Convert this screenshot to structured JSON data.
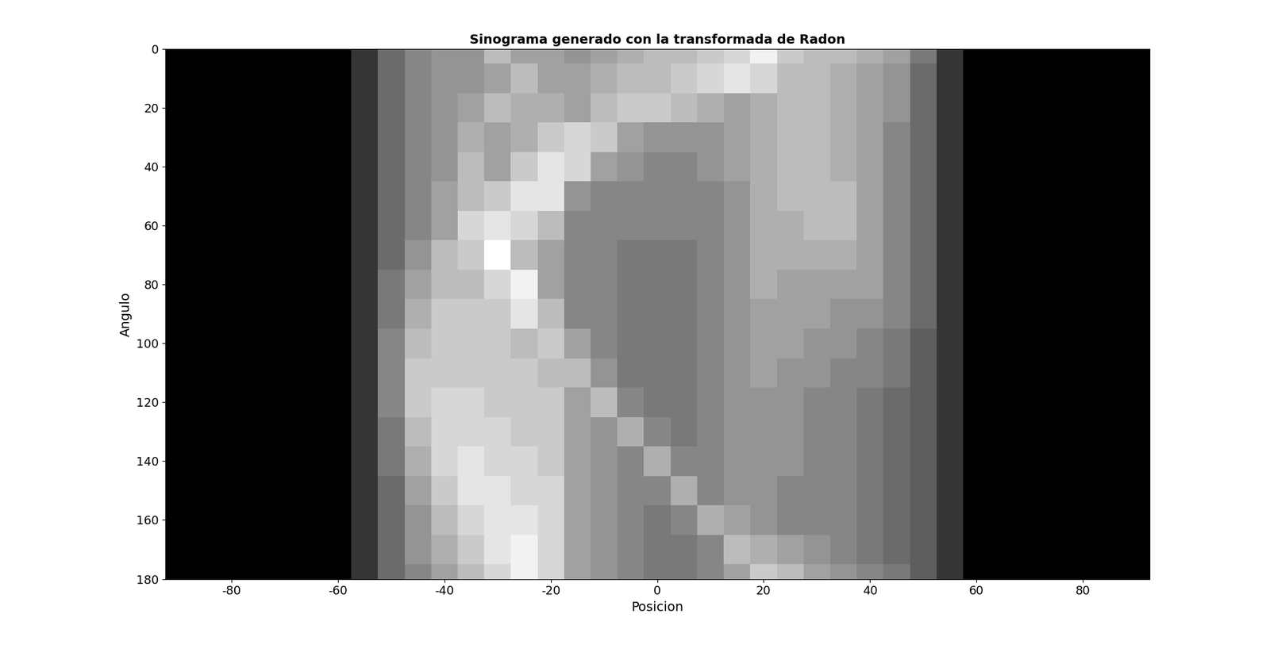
{
  "chart_data": {
    "type": "heatmap",
    "title": "Sinograma generado con la transformada de Radon",
    "x_label": "Posicion",
    "y_label": "Angulo",
    "color": "gray",
    "x": [
      -90,
      -85,
      -80,
      -75,
      -70,
      -65,
      -60,
      -55,
      -50,
      -45,
      -40,
      -35,
      -30,
      -25,
      -20,
      -15,
      -10,
      -5,
      0,
      5,
      10,
      15,
      20,
      25,
      30,
      35,
      40,
      45,
      50,
      55,
      60,
      65,
      70,
      75,
      80,
      85,
      90
    ],
    "y": [
      0,
      10,
      20,
      30,
      40,
      50,
      60,
      70,
      80,
      90,
      100,
      110,
      120,
      130,
      140,
      150,
      160,
      170,
      180
    ],
    "cells": [
      [
        0,
        0,
        0,
        0,
        0,
        0,
        0,
        0.2,
        0.4,
        0.5,
        0.55,
        0.55,
        0.7,
        0.6,
        0.6,
        0.55,
        0.6,
        0.65,
        0.7,
        0.7,
        0.75,
        0.8,
        0.9,
        0.75,
        0.7,
        0.7,
        0.65,
        0.6,
        0.45,
        0.2,
        0,
        0,
        0,
        0,
        0,
        0,
        0
      ],
      [
        0,
        0,
        0,
        0,
        0,
        0,
        0,
        0.2,
        0.4,
        0.5,
        0.55,
        0.55,
        0.6,
        0.7,
        0.6,
        0.6,
        0.65,
        0.7,
        0.7,
        0.75,
        0.8,
        0.85,
        0.8,
        0.7,
        0.7,
        0.65,
        0.6,
        0.55,
        0.4,
        0.2,
        0,
        0,
        0,
        0,
        0,
        0,
        0
      ],
      [
        0,
        0,
        0,
        0,
        0,
        0,
        0,
        0.2,
        0.4,
        0.5,
        0.55,
        0.6,
        0.7,
        0.65,
        0.65,
        0.6,
        0.7,
        0.75,
        0.75,
        0.7,
        0.65,
        0.6,
        0.65,
        0.7,
        0.7,
        0.65,
        0.6,
        0.55,
        0.4,
        0.2,
        0,
        0,
        0,
        0,
        0,
        0,
        0
      ],
      [
        0,
        0,
        0,
        0,
        0,
        0,
        0,
        0.2,
        0.4,
        0.5,
        0.55,
        0.65,
        0.6,
        0.65,
        0.75,
        0.8,
        0.75,
        0.6,
        0.55,
        0.55,
        0.55,
        0.6,
        0.65,
        0.7,
        0.7,
        0.65,
        0.6,
        0.5,
        0.4,
        0.2,
        0,
        0,
        0,
        0,
        0,
        0,
        0
      ],
      [
        0,
        0,
        0,
        0,
        0,
        0,
        0,
        0.2,
        0.4,
        0.5,
        0.55,
        0.7,
        0.6,
        0.75,
        0.85,
        0.8,
        0.6,
        0.55,
        0.5,
        0.5,
        0.55,
        0.6,
        0.65,
        0.7,
        0.7,
        0.65,
        0.6,
        0.5,
        0.4,
        0.2,
        0,
        0,
        0,
        0,
        0,
        0,
        0
      ],
      [
        0,
        0,
        0,
        0,
        0,
        0,
        0,
        0.2,
        0.4,
        0.5,
        0.6,
        0.7,
        0.75,
        0.85,
        0.85,
        0.55,
        0.5,
        0.5,
        0.5,
        0.5,
        0.5,
        0.55,
        0.65,
        0.7,
        0.7,
        0.7,
        0.6,
        0.5,
        0.4,
        0.2,
        0,
        0,
        0,
        0,
        0,
        0,
        0
      ],
      [
        0,
        0,
        0,
        0,
        0,
        0,
        0,
        0.2,
        0.4,
        0.5,
        0.6,
        0.8,
        0.85,
        0.8,
        0.7,
        0.5,
        0.5,
        0.5,
        0.5,
        0.5,
        0.5,
        0.55,
        0.65,
        0.65,
        0.7,
        0.7,
        0.6,
        0.5,
        0.4,
        0.2,
        0,
        0,
        0,
        0,
        0,
        0,
        0
      ],
      [
        0,
        0,
        0,
        0,
        0,
        0,
        0,
        0.2,
        0.4,
        0.55,
        0.7,
        0.75,
        0.95,
        0.7,
        0.6,
        0.5,
        0.5,
        0.45,
        0.45,
        0.45,
        0.5,
        0.55,
        0.65,
        0.65,
        0.65,
        0.65,
        0.6,
        0.5,
        0.4,
        0.2,
        0,
        0,
        0,
        0,
        0,
        0,
        0
      ],
      [
        0,
        0,
        0,
        0,
        0,
        0,
        0,
        0.2,
        0.45,
        0.6,
        0.7,
        0.7,
        0.8,
        0.9,
        0.6,
        0.5,
        0.5,
        0.45,
        0.45,
        0.45,
        0.5,
        0.55,
        0.65,
        0.6,
        0.6,
        0.6,
        0.6,
        0.5,
        0.4,
        0.2,
        0,
        0,
        0,
        0,
        0,
        0,
        0
      ],
      [
        0,
        0,
        0,
        0,
        0,
        0,
        0,
        0.2,
        0.45,
        0.65,
        0.75,
        0.75,
        0.75,
        0.85,
        0.7,
        0.5,
        0.5,
        0.45,
        0.45,
        0.45,
        0.5,
        0.55,
        0.6,
        0.6,
        0.6,
        0.55,
        0.55,
        0.5,
        0.4,
        0.2,
        0,
        0,
        0,
        0,
        0,
        0,
        0
      ],
      [
        0,
        0,
        0,
        0,
        0,
        0,
        0,
        0.2,
        0.5,
        0.7,
        0.75,
        0.75,
        0.75,
        0.7,
        0.75,
        0.6,
        0.5,
        0.45,
        0.45,
        0.45,
        0.5,
        0.55,
        0.6,
        0.6,
        0.55,
        0.55,
        0.5,
        0.45,
        0.35,
        0.2,
        0,
        0,
        0,
        0,
        0,
        0,
        0
      ],
      [
        0,
        0,
        0,
        0,
        0,
        0,
        0,
        0.2,
        0.5,
        0.75,
        0.75,
        0.75,
        0.75,
        0.75,
        0.7,
        0.7,
        0.55,
        0.45,
        0.45,
        0.45,
        0.5,
        0.55,
        0.6,
        0.55,
        0.55,
        0.5,
        0.5,
        0.45,
        0.35,
        0.2,
        0,
        0,
        0,
        0,
        0,
        0,
        0
      ],
      [
        0,
        0,
        0,
        0,
        0,
        0,
        0,
        0.2,
        0.5,
        0.75,
        0.8,
        0.8,
        0.75,
        0.75,
        0.75,
        0.6,
        0.7,
        0.5,
        0.45,
        0.45,
        0.5,
        0.55,
        0.55,
        0.55,
        0.5,
        0.5,
        0.45,
        0.4,
        0.35,
        0.2,
        0,
        0,
        0,
        0,
        0,
        0,
        0
      ],
      [
        0,
        0,
        0,
        0,
        0,
        0,
        0,
        0.2,
        0.45,
        0.7,
        0.8,
        0.8,
        0.8,
        0.75,
        0.75,
        0.6,
        0.55,
        0.65,
        0.5,
        0.45,
        0.5,
        0.55,
        0.55,
        0.55,
        0.5,
        0.5,
        0.45,
        0.4,
        0.35,
        0.2,
        0,
        0,
        0,
        0,
        0,
        0,
        0
      ],
      [
        0,
        0,
        0,
        0,
        0,
        0,
        0,
        0.2,
        0.45,
        0.65,
        0.8,
        0.85,
        0.8,
        0.8,
        0.75,
        0.6,
        0.55,
        0.5,
        0.65,
        0.5,
        0.5,
        0.55,
        0.55,
        0.55,
        0.5,
        0.5,
        0.45,
        0.4,
        0.35,
        0.2,
        0,
        0,
        0,
        0,
        0,
        0,
        0
      ],
      [
        0,
        0,
        0,
        0,
        0,
        0,
        0,
        0.2,
        0.4,
        0.6,
        0.75,
        0.85,
        0.85,
        0.8,
        0.8,
        0.6,
        0.55,
        0.5,
        0.5,
        0.65,
        0.5,
        0.55,
        0.55,
        0.5,
        0.5,
        0.5,
        0.45,
        0.4,
        0.35,
        0.2,
        0,
        0,
        0,
        0,
        0,
        0,
        0
      ],
      [
        0,
        0,
        0,
        0,
        0,
        0,
        0,
        0.2,
        0.4,
        0.55,
        0.7,
        0.8,
        0.85,
        0.85,
        0.8,
        0.6,
        0.55,
        0.5,
        0.45,
        0.5,
        0.65,
        0.6,
        0.55,
        0.5,
        0.5,
        0.5,
        0.45,
        0.4,
        0.35,
        0.2,
        0,
        0,
        0,
        0,
        0,
        0,
        0
      ],
      [
        0,
        0,
        0,
        0,
        0,
        0,
        0,
        0.2,
        0.4,
        0.55,
        0.65,
        0.75,
        0.85,
        0.9,
        0.8,
        0.6,
        0.55,
        0.5,
        0.45,
        0.45,
        0.5,
        0.7,
        0.65,
        0.6,
        0.55,
        0.5,
        0.45,
        0.4,
        0.35,
        0.2,
        0,
        0,
        0,
        0,
        0,
        0,
        0
      ],
      [
        0,
        0,
        0,
        0,
        0,
        0,
        0,
        0.2,
        0.4,
        0.5,
        0.6,
        0.7,
        0.8,
        0.9,
        0.8,
        0.6,
        0.55,
        0.5,
        0.45,
        0.45,
        0.5,
        0.6,
        0.75,
        0.7,
        0.6,
        0.55,
        0.5,
        0.45,
        0.35,
        0.2,
        0,
        0,
        0,
        0,
        0,
        0,
        0
      ]
    ],
    "xlim": [
      -92.5,
      92.5
    ],
    "ylim": [
      180,
      0
    ],
    "xticks": [
      -80,
      -60,
      -40,
      -20,
      0,
      20,
      40,
      60,
      80
    ],
    "yticks": [
      0,
      20,
      40,
      60,
      80,
      100,
      120,
      140,
      160,
      180
    ]
  }
}
